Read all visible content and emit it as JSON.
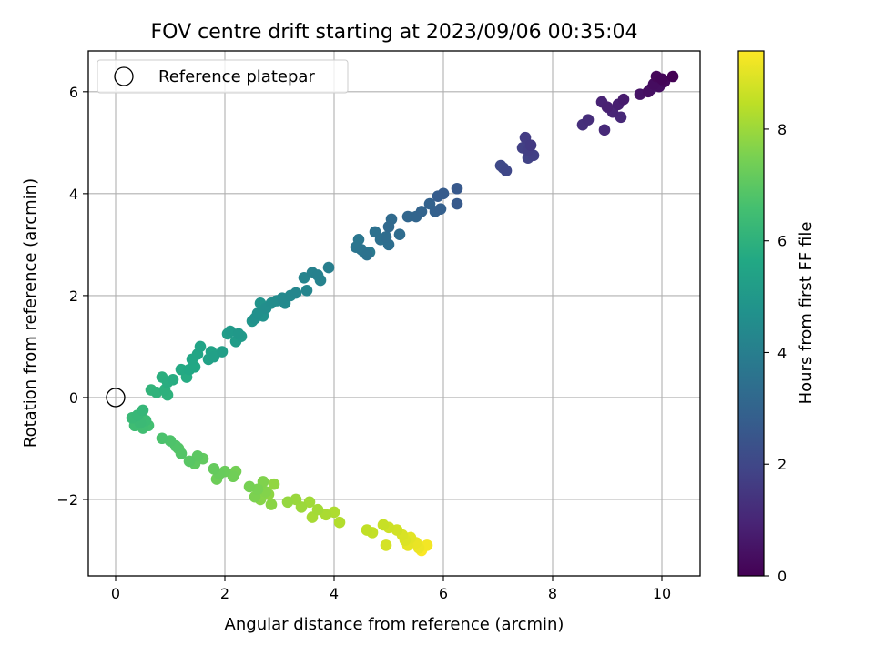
{
  "chart_data": {
    "type": "scatter",
    "title": "FOV centre drift starting at 2023/09/06 00:35:04",
    "xlabel": "Angular distance from reference (arcmin)",
    "ylabel": "Rotation from reference (arcmin)",
    "xlim": [
      -0.5,
      10.7
    ],
    "ylim": [
      -3.5,
      6.8
    ],
    "x_ticks": [
      0,
      2,
      4,
      6,
      8,
      10
    ],
    "y_ticks": [
      -2,
      0,
      2,
      4,
      6
    ],
    "x_tick_labels": [
      "0",
      "2",
      "4",
      "6",
      "8",
      "10"
    ],
    "y_tick_labels": [
      "−2",
      "0",
      "2",
      "4",
      "6"
    ],
    "grid": true,
    "legend": {
      "position": "upper-left",
      "entries": [
        {
          "label": "Reference platepar",
          "marker": "open-circle"
        }
      ]
    },
    "reference_point": {
      "x": 0,
      "y": 0
    },
    "colorbar": {
      "label": "Hours from first FF file",
      "colormap": "viridis",
      "range": [
        0,
        9.4
      ],
      "ticks": [
        0,
        2,
        4,
        6,
        8
      ],
      "tick_labels": [
        "0",
        "2",
        "4",
        "6",
        "8"
      ]
    },
    "series": [
      {
        "points": [
          {
            "x": 10.2,
            "y": 6.3,
            "t": 0.0
          },
          {
            "x": 10.0,
            "y": 6.25,
            "t": 0.1
          },
          {
            "x": 9.9,
            "y": 6.3,
            "t": 0.15
          },
          {
            "x": 10.05,
            "y": 6.2,
            "t": 0.2
          },
          {
            "x": 9.85,
            "y": 6.15,
            "t": 0.3
          },
          {
            "x": 9.95,
            "y": 6.1,
            "t": 0.35
          },
          {
            "x": 9.75,
            "y": 6.0,
            "t": 0.4
          },
          {
            "x": 9.6,
            "y": 5.95,
            "t": 0.5
          },
          {
            "x": 9.8,
            "y": 6.05,
            "t": 0.55
          },
          {
            "x": 9.3,
            "y": 5.85,
            "t": 0.7
          },
          {
            "x": 9.2,
            "y": 5.75,
            "t": 0.8
          },
          {
            "x": 9.0,
            "y": 5.7,
            "t": 0.85
          },
          {
            "x": 8.9,
            "y": 5.8,
            "t": 0.9
          },
          {
            "x": 9.1,
            "y": 5.6,
            "t": 1.0
          },
          {
            "x": 9.25,
            "y": 5.5,
            "t": 1.05
          },
          {
            "x": 8.95,
            "y": 5.25,
            "t": 1.1
          },
          {
            "x": 8.65,
            "y": 5.45,
            "t": 1.2
          },
          {
            "x": 8.55,
            "y": 5.35,
            "t": 1.25
          },
          {
            "x": 7.6,
            "y": 4.95,
            "t": 1.6
          },
          {
            "x": 7.5,
            "y": 5.1,
            "t": 1.65
          },
          {
            "x": 7.55,
            "y": 4.85,
            "t": 1.7
          },
          {
            "x": 7.65,
            "y": 4.75,
            "t": 1.75
          },
          {
            "x": 7.45,
            "y": 4.9,
            "t": 1.8
          },
          {
            "x": 7.55,
            "y": 4.7,
            "t": 1.85
          },
          {
            "x": 7.15,
            "y": 4.45,
            "t": 2.0
          },
          {
            "x": 7.05,
            "y": 4.55,
            "t": 2.05
          },
          {
            "x": 7.1,
            "y": 4.5,
            "t": 2.1
          },
          {
            "x": 6.25,
            "y": 4.1,
            "t": 2.6
          },
          {
            "x": 6.25,
            "y": 3.8,
            "t": 2.65
          },
          {
            "x": 6.0,
            "y": 4.0,
            "t": 2.7
          },
          {
            "x": 5.9,
            "y": 3.95,
            "t": 2.75
          },
          {
            "x": 5.95,
            "y": 3.7,
            "t": 2.85
          },
          {
            "x": 5.85,
            "y": 3.65,
            "t": 2.9
          },
          {
            "x": 5.75,
            "y": 3.8,
            "t": 2.95
          },
          {
            "x": 5.6,
            "y": 3.65,
            "t": 3.0
          },
          {
            "x": 5.5,
            "y": 3.55,
            "t": 3.05
          },
          {
            "x": 5.35,
            "y": 3.55,
            "t": 3.1
          },
          {
            "x": 5.0,
            "y": 3.35,
            "t": 3.2
          },
          {
            "x": 5.05,
            "y": 3.5,
            "t": 3.25
          },
          {
            "x": 5.2,
            "y": 3.2,
            "t": 3.3
          },
          {
            "x": 4.95,
            "y": 3.15,
            "t": 3.35
          },
          {
            "x": 5.0,
            "y": 3.0,
            "t": 3.4
          },
          {
            "x": 4.85,
            "y": 3.1,
            "t": 3.45
          },
          {
            "x": 4.75,
            "y": 3.25,
            "t": 3.5
          },
          {
            "x": 4.6,
            "y": 2.8,
            "t": 3.55
          },
          {
            "x": 4.5,
            "y": 2.9,
            "t": 3.6
          },
          {
            "x": 4.4,
            "y": 2.95,
            "t": 3.65
          },
          {
            "x": 4.45,
            "y": 3.1,
            "t": 3.7
          },
          {
            "x": 4.55,
            "y": 2.85,
            "t": 3.75
          },
          {
            "x": 4.65,
            "y": 2.85,
            "t": 3.8
          },
          {
            "x": 3.9,
            "y": 2.55,
            "t": 4.0
          },
          {
            "x": 3.7,
            "y": 2.4,
            "t": 4.05
          },
          {
            "x": 3.6,
            "y": 2.45,
            "t": 4.1
          },
          {
            "x": 3.75,
            "y": 2.3,
            "t": 4.15
          },
          {
            "x": 3.45,
            "y": 2.35,
            "t": 4.2
          },
          {
            "x": 3.5,
            "y": 2.1,
            "t": 4.25
          },
          {
            "x": 3.3,
            "y": 2.05,
            "t": 4.3
          },
          {
            "x": 3.2,
            "y": 2.0,
            "t": 4.35
          },
          {
            "x": 3.05,
            "y": 1.95,
            "t": 4.4
          },
          {
            "x": 3.1,
            "y": 1.85,
            "t": 4.45
          },
          {
            "x": 2.95,
            "y": 1.9,
            "t": 4.5
          },
          {
            "x": 2.85,
            "y": 1.85,
            "t": 4.55
          },
          {
            "x": 2.75,
            "y": 1.75,
            "t": 4.6
          },
          {
            "x": 2.6,
            "y": 1.65,
            "t": 4.65
          },
          {
            "x": 2.55,
            "y": 1.55,
            "t": 4.7
          },
          {
            "x": 2.7,
            "y": 1.6,
            "t": 4.75
          },
          {
            "x": 2.65,
            "y": 1.85,
            "t": 4.8
          },
          {
            "x": 2.5,
            "y": 1.5,
            "t": 4.85
          },
          {
            "x": 2.25,
            "y": 1.25,
            "t": 5.0
          },
          {
            "x": 2.1,
            "y": 1.3,
            "t": 5.05
          },
          {
            "x": 2.3,
            "y": 1.2,
            "t": 5.1
          },
          {
            "x": 2.2,
            "y": 1.1,
            "t": 5.15
          },
          {
            "x": 2.05,
            "y": 1.25,
            "t": 5.2
          },
          {
            "x": 1.95,
            "y": 0.9,
            "t": 5.25
          },
          {
            "x": 1.8,
            "y": 0.8,
            "t": 5.3
          },
          {
            "x": 1.7,
            "y": 0.75,
            "t": 5.35
          },
          {
            "x": 1.75,
            "y": 0.9,
            "t": 5.4
          },
          {
            "x": 1.55,
            "y": 1.0,
            "t": 5.45
          },
          {
            "x": 1.5,
            "y": 0.85,
            "t": 5.5
          },
          {
            "x": 1.4,
            "y": 0.75,
            "t": 5.55
          },
          {
            "x": 1.45,
            "y": 0.6,
            "t": 5.6
          },
          {
            "x": 1.35,
            "y": 0.55,
            "t": 5.65
          },
          {
            "x": 1.2,
            "y": 0.55,
            "t": 5.7
          },
          {
            "x": 1.3,
            "y": 0.4,
            "t": 5.75
          },
          {
            "x": 1.05,
            "y": 0.35,
            "t": 5.8
          },
          {
            "x": 0.95,
            "y": 0.3,
            "t": 5.85
          },
          {
            "x": 0.85,
            "y": 0.4,
            "t": 5.9
          },
          {
            "x": 0.9,
            "y": 0.15,
            "t": 5.95
          },
          {
            "x": 0.95,
            "y": 0.05,
            "t": 6.0
          },
          {
            "x": 0.75,
            "y": 0.1,
            "t": 6.05
          },
          {
            "x": 0.65,
            "y": 0.15,
            "t": 6.1
          },
          {
            "x": 0.5,
            "y": -0.25,
            "t": 6.2
          },
          {
            "x": 0.4,
            "y": -0.35,
            "t": 6.25
          },
          {
            "x": 0.3,
            "y": -0.4,
            "t": 6.3
          },
          {
            "x": 0.45,
            "y": -0.5,
            "t": 6.35
          },
          {
            "x": 0.55,
            "y": -0.45,
            "t": 6.4
          },
          {
            "x": 0.35,
            "y": -0.55,
            "t": 6.45
          },
          {
            "x": 0.5,
            "y": -0.6,
            "t": 6.5
          },
          {
            "x": 0.6,
            "y": -0.55,
            "t": 6.55
          },
          {
            "x": 0.85,
            "y": -0.8,
            "t": 6.7
          },
          {
            "x": 1.0,
            "y": -0.85,
            "t": 6.75
          },
          {
            "x": 1.1,
            "y": -0.95,
            "t": 6.8
          },
          {
            "x": 1.2,
            "y": -1.1,
            "t": 6.85
          },
          {
            "x": 1.15,
            "y": -1.0,
            "t": 6.9
          },
          {
            "x": 1.35,
            "y": -1.25,
            "t": 6.95
          },
          {
            "x": 1.5,
            "y": -1.15,
            "t": 7.0
          },
          {
            "x": 1.45,
            "y": -1.3,
            "t": 7.05
          },
          {
            "x": 1.6,
            "y": -1.2,
            "t": 7.1
          },
          {
            "x": 1.8,
            "y": -1.4,
            "t": 7.15
          },
          {
            "x": 1.9,
            "y": -1.5,
            "t": 7.2
          },
          {
            "x": 2.0,
            "y": -1.45,
            "t": 7.25
          },
          {
            "x": 1.85,
            "y": -1.6,
            "t": 7.3
          },
          {
            "x": 2.15,
            "y": -1.55,
            "t": 7.35
          },
          {
            "x": 2.2,
            "y": -1.45,
            "t": 7.4
          },
          {
            "x": 2.45,
            "y": -1.75,
            "t": 7.45
          },
          {
            "x": 2.6,
            "y": -1.8,
            "t": 7.5
          },
          {
            "x": 2.55,
            "y": -1.95,
            "t": 7.55
          },
          {
            "x": 2.7,
            "y": -1.65,
            "t": 7.6
          },
          {
            "x": 2.75,
            "y": -1.85,
            "t": 7.65
          },
          {
            "x": 2.65,
            "y": -2.0,
            "t": 7.7
          },
          {
            "x": 2.85,
            "y": -2.1,
            "t": 7.75
          },
          {
            "x": 2.8,
            "y": -1.9,
            "t": 7.8
          },
          {
            "x": 2.9,
            "y": -1.7,
            "t": 7.85
          },
          {
            "x": 3.15,
            "y": -2.05,
            "t": 7.9
          },
          {
            "x": 3.3,
            "y": -2.0,
            "t": 7.95
          },
          {
            "x": 3.4,
            "y": -2.15,
            "t": 8.0
          },
          {
            "x": 3.55,
            "y": -2.05,
            "t": 8.05
          },
          {
            "x": 3.7,
            "y": -2.2,
            "t": 8.1
          },
          {
            "x": 3.6,
            "y": -2.35,
            "t": 8.15
          },
          {
            "x": 3.85,
            "y": -2.3,
            "t": 8.2
          },
          {
            "x": 4.0,
            "y": -2.25,
            "t": 8.25
          },
          {
            "x": 4.1,
            "y": -2.45,
            "t": 8.3
          },
          {
            "x": 4.6,
            "y": -2.6,
            "t": 8.5
          },
          {
            "x": 4.7,
            "y": -2.65,
            "t": 8.55
          },
          {
            "x": 4.9,
            "y": -2.5,
            "t": 8.6
          },
          {
            "x": 5.0,
            "y": -2.55,
            "t": 8.7
          },
          {
            "x": 5.15,
            "y": -2.6,
            "t": 8.75
          },
          {
            "x": 4.95,
            "y": -2.9,
            "t": 8.8
          },
          {
            "x": 5.25,
            "y": -2.7,
            "t": 8.85
          },
          {
            "x": 5.3,
            "y": -2.8,
            "t": 8.9
          },
          {
            "x": 5.4,
            "y": -2.75,
            "t": 9.0
          },
          {
            "x": 5.35,
            "y": -2.9,
            "t": 9.05
          },
          {
            "x": 5.5,
            "y": -2.85,
            "t": 9.1
          },
          {
            "x": 5.55,
            "y": -2.95,
            "t": 9.15
          },
          {
            "x": 5.7,
            "y": -2.9,
            "t": 9.25
          },
          {
            "x": 5.6,
            "y": -3.0,
            "t": 9.35
          }
        ]
      }
    ]
  }
}
